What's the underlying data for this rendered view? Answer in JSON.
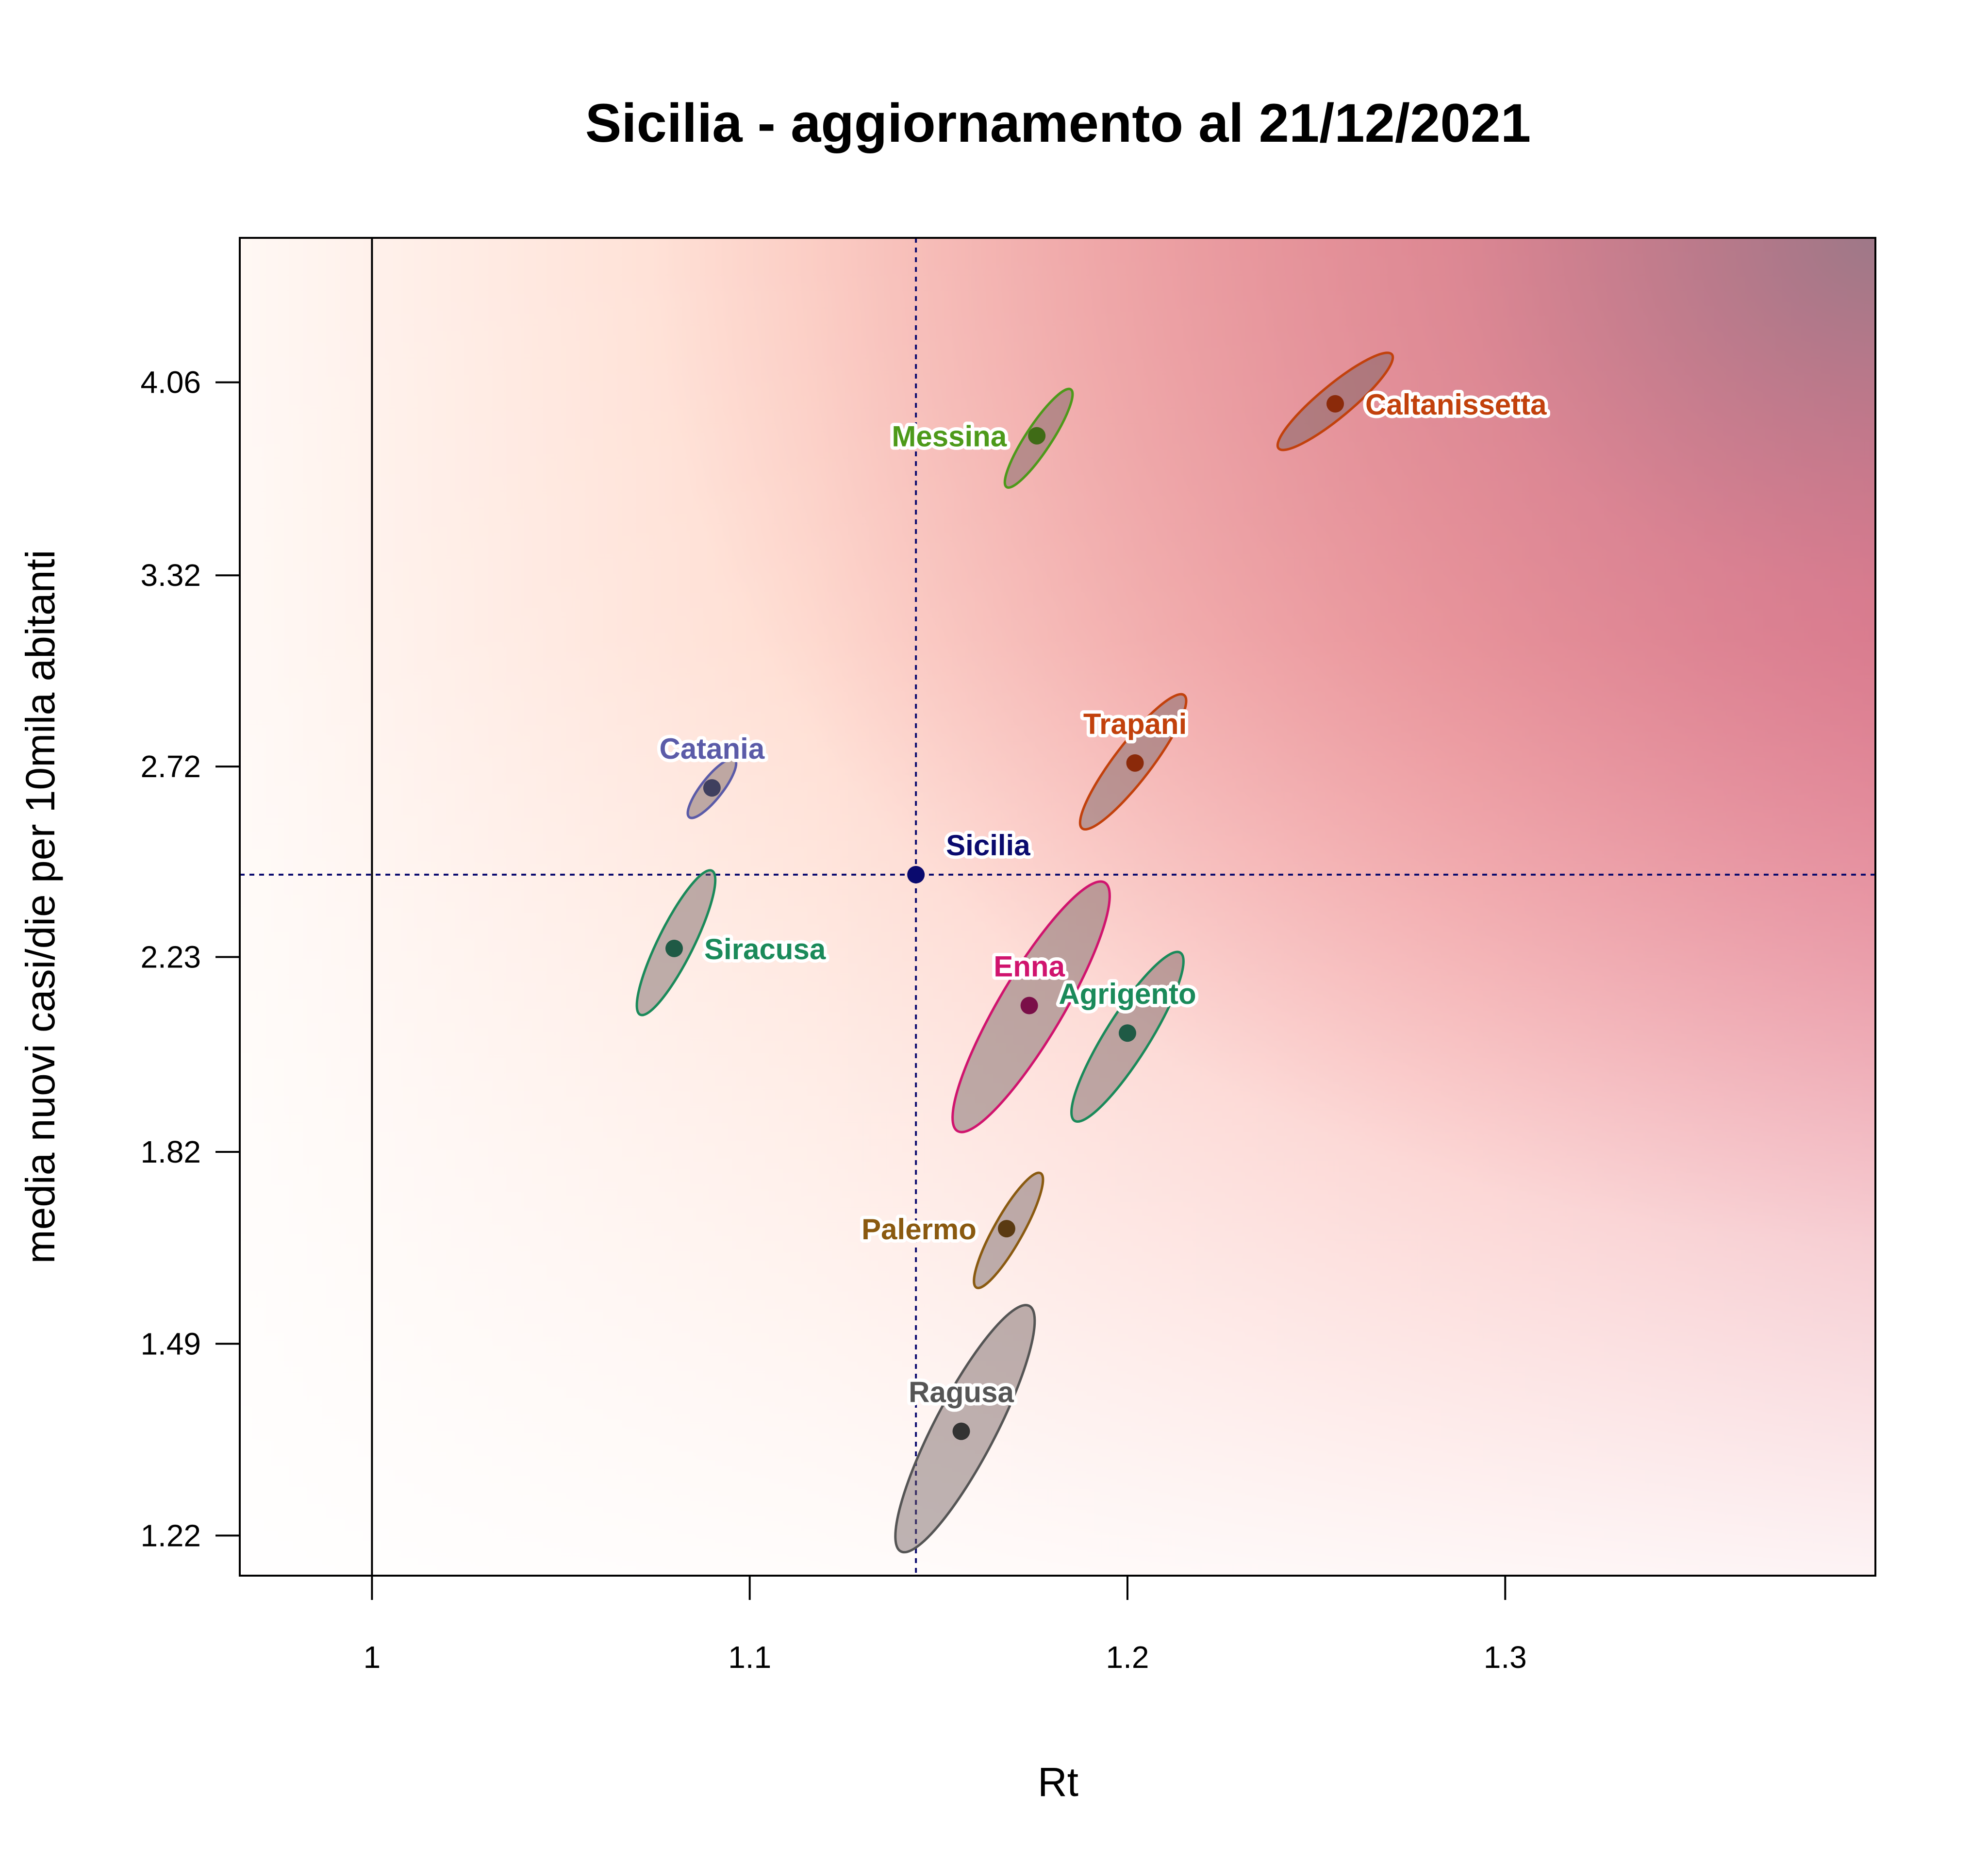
{
  "chart_data": {
    "type": "scatter",
    "title": "Sicilia - aggiornamento al 21/12/2021",
    "xlabel": "Rt",
    "ylabel": "media nuovi casi/die per 10mila abitanti",
    "xlim": [
      0.965,
      1.398
    ],
    "x_ticks": [
      1,
      1.1,
      1.2,
      1.3
    ],
    "x_tick_labels": [
      "1",
      "1.1",
      "1.2",
      "1.3"
    ],
    "y_scale": "log",
    "ylim": [
      1.17,
      4.72
    ],
    "y_ticks": [
      1.22,
      1.49,
      1.82,
      2.23,
      2.72,
      3.32,
      4.06
    ],
    "y_tick_labels": [
      "1.22",
      "1.49",
      "1.82",
      "2.23",
      "2.72",
      "3.32",
      "4.06"
    ],
    "reference_lines": {
      "x_vertical_solid": 1,
      "x_dashed": 1.144,
      "y_dashed": 2.43
    },
    "grid": false,
    "legend": "none",
    "region_label": {
      "name": "Sicilia",
      "x": 1.144,
      "y": 2.43,
      "color": "#0a0a6e"
    },
    "points": [
      {
        "name": "Caltanissetta",
        "x": 1.255,
        "y": 3.97,
        "color": "#c2410c",
        "dot": "#8b2a0a",
        "ellipse": {
          "x0": 1.24,
          "y0": 3.79,
          "x1": 1.27,
          "y1": 4.18
        },
        "label_side": "right"
      },
      {
        "name": "Messina",
        "x": 1.176,
        "y": 3.84,
        "color": "#4d9a1a",
        "dot": "#3f6b16",
        "ellipse": {
          "x0": 1.168,
          "y0": 3.64,
          "x1": 1.185,
          "y1": 4.03
        },
        "label_side": "left"
      },
      {
        "name": "Trapani",
        "x": 1.202,
        "y": 2.73,
        "color": "#c2410c",
        "dot": "#8b2a0a",
        "ellipse": {
          "x0": 1.188,
          "y0": 2.55,
          "x1": 1.215,
          "y1": 2.93
        },
        "label_side": "top"
      },
      {
        "name": "Catania",
        "x": 1.09,
        "y": 2.66,
        "color": "#5b5ba8",
        "dot": "#3f3f5e",
        "ellipse": {
          "x0": 1.084,
          "y0": 2.58,
          "x1": 1.096,
          "y1": 2.74
        },
        "label_side": "top"
      },
      {
        "name": "Siracusa",
        "x": 1.08,
        "y": 2.25,
        "color": "#1a8a5a",
        "dot": "#1f5a45",
        "ellipse": {
          "x0": 1.071,
          "y0": 2.1,
          "x1": 1.09,
          "y1": 2.44
        },
        "label_side": "right"
      },
      {
        "name": "Enna",
        "x": 1.174,
        "y": 2.12,
        "color": "#d0146e",
        "dot": "#7a0f48",
        "ellipse": {
          "x0": 1.155,
          "y0": 1.86,
          "x1": 1.194,
          "y1": 2.41
        },
        "label_side": "top"
      },
      {
        "name": "Agrigento",
        "x": 1.2,
        "y": 2.06,
        "color": "#1a8a5a",
        "dot": "#1f5a45",
        "ellipse": {
          "x0": 1.186,
          "y0": 1.88,
          "x1": 1.214,
          "y1": 2.24
        },
        "label_side": "top"
      },
      {
        "name": "Palermo",
        "x": 1.168,
        "y": 1.68,
        "color": "#8a5a10",
        "dot": "#5a3a12",
        "ellipse": {
          "x0": 1.16,
          "y0": 1.58,
          "x1": 1.177,
          "y1": 1.78
        },
        "label_side": "left"
      },
      {
        "name": "Ragusa",
        "x": 1.156,
        "y": 1.36,
        "color": "#555555",
        "dot": "#333333",
        "ellipse": {
          "x0": 1.14,
          "y0": 1.2,
          "x1": 1.174,
          "y1": 1.55
        },
        "label_side": "top"
      }
    ]
  }
}
